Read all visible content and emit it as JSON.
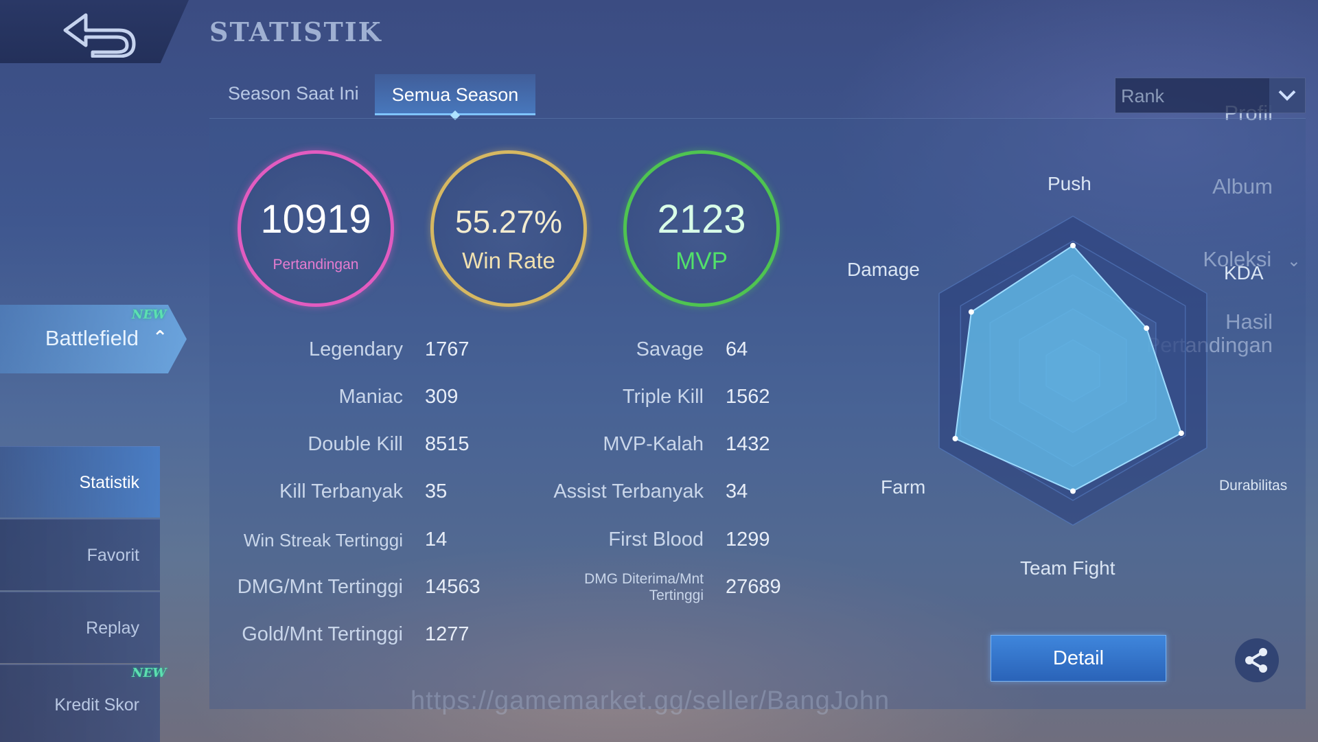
{
  "header": {
    "title": "STATISTIK"
  },
  "sidebar": {
    "items": [
      {
        "label": "Profil"
      },
      {
        "label": "Album"
      },
      {
        "label": "Koleksi"
      },
      {
        "label": "Hasil Pertandingan"
      },
      {
        "label": "Battlefield",
        "badge": "NEW"
      }
    ],
    "sub_items": [
      {
        "label": "Statistik"
      },
      {
        "label": "Favorit"
      },
      {
        "label": "Replay"
      },
      {
        "label": "Kredit Skor",
        "badge": "NEW"
      }
    ]
  },
  "tabs": [
    {
      "label": "Season Saat Ini"
    },
    {
      "label": "Semua Season"
    }
  ],
  "mode_select": {
    "value": "Rank"
  },
  "summary": {
    "matches": {
      "value": "10919",
      "label": "Pertandingan",
      "color": "#e25cc0"
    },
    "win_rate": {
      "value": "55.27%",
      "label": "Win Rate",
      "color": "#d6b862"
    },
    "mvp": {
      "value": "2123",
      "label": "MVP",
      "color": "#4fc451"
    }
  },
  "stats_left": [
    {
      "label": "Legendary",
      "value": "1767"
    },
    {
      "label": "Maniac",
      "value": "309"
    },
    {
      "label": "Double Kill",
      "value": "8515"
    },
    {
      "label": "Kill Terbanyak",
      "value": "35"
    },
    {
      "label": "Win Streak Tertinggi",
      "value": "14"
    },
    {
      "label": "DMG/Mnt Tertinggi",
      "value": "14563"
    },
    {
      "label": "Gold/Mnt Tertinggi",
      "value": "1277"
    }
  ],
  "stats_right": [
    {
      "label": "Savage",
      "value": "64"
    },
    {
      "label": "Triple Kill",
      "value": "1562"
    },
    {
      "label": "MVP-Kalah",
      "value": "1432"
    },
    {
      "label": "Assist Terbanyak",
      "value": "34"
    },
    {
      "label": "First Blood",
      "value": "1299"
    },
    {
      "label": "DMG Diterima/Mnt Tertinggi",
      "value": "27689"
    }
  ],
  "radar": {
    "axes": [
      "Push",
      "KDA",
      "Durabilitas",
      "Team Fight",
      "Farm",
      "Damage"
    ],
    "values": [
      0.81,
      0.55,
      0.81,
      0.78,
      0.88,
      0.76
    ]
  },
  "detail_button": {
    "label": "Detail"
  },
  "share_icon": "share-icon",
  "watermark": "https://gamemarket.gg/seller/BangJohn"
}
